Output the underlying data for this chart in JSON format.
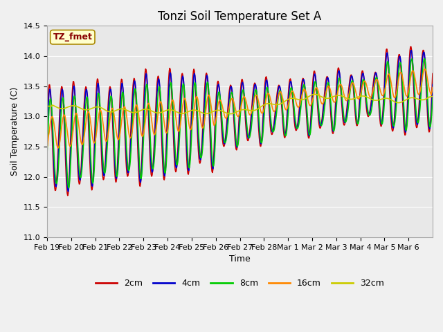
{
  "title": "Tonzi Soil Temperature Set A",
  "ylabel": "Soil Temperature (C)",
  "xlabel": "Time",
  "annotation": "TZ_fmet",
  "ylim": [
    11.0,
    14.5
  ],
  "xtick_labels": [
    "Feb 19",
    "Feb 20",
    "Feb 21",
    "Feb 22",
    "Feb 23",
    "Feb 24",
    "Feb 25",
    "Feb 26",
    "Feb 27",
    "Feb 28",
    "Mar 1",
    "Mar 2",
    "Mar 3",
    "Mar 4",
    "Mar 5",
    "Mar 6"
  ],
  "series_labels": [
    "2cm",
    "4cm",
    "8cm",
    "16cm",
    "32cm"
  ],
  "series_colors": [
    "#cc0000",
    "#0000cc",
    "#00cc00",
    "#ff8800",
    "#cccc00"
  ],
  "title_fontsize": 12,
  "label_fontsize": 9,
  "tick_fontsize": 8,
  "legend_fontsize": 9
}
